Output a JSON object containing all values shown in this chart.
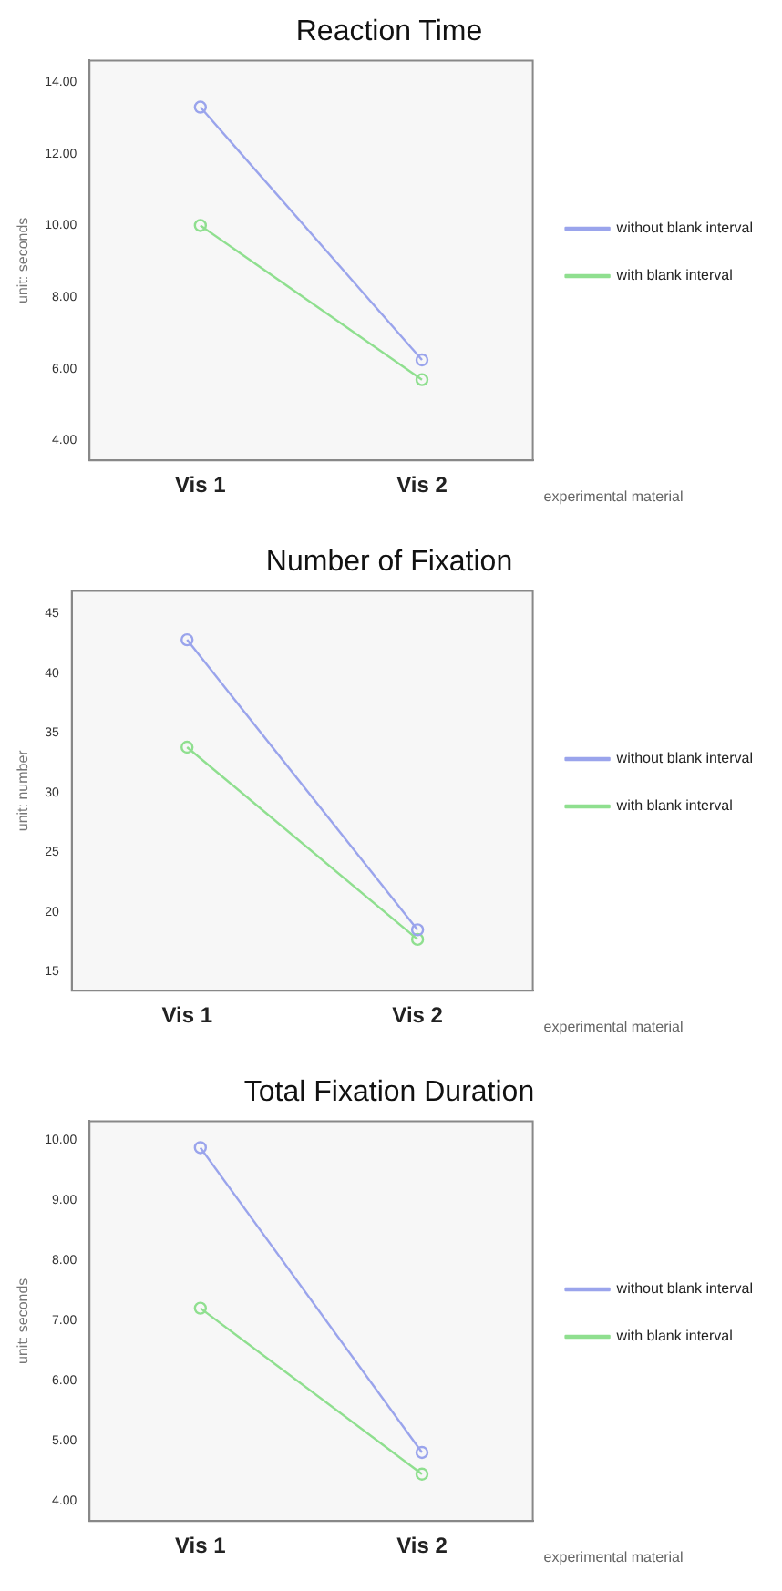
{
  "chart_data": [
    {
      "type": "line",
      "title": "Reaction Time",
      "xlabel": "experimental material",
      "ylabel": "unit: seconds",
      "categories": [
        "Vis 1",
        "Vis 2"
      ],
      "series": [
        {
          "name": "without blank interval",
          "color": "#9aa4ec",
          "values": [
            13.3,
            6.25
          ]
        },
        {
          "name": "with blank interval",
          "color": "#8fdf8f",
          "values": [
            10.0,
            5.7
          ]
        }
      ],
      "ylim": [
        3.45,
        14.6
      ],
      "yticks": [
        {
          "value": 4,
          "label": "4.00"
        },
        {
          "value": 6,
          "label": "6.00"
        },
        {
          "value": 8,
          "label": "8.00"
        },
        {
          "value": 10,
          "label": "10.00"
        },
        {
          "value": 12,
          "label": "12.00"
        },
        {
          "value": 14,
          "label": "14.00"
        }
      ],
      "marker": "circle",
      "legend": "right",
      "grid": false
    },
    {
      "type": "line",
      "title": "Number of Fixation",
      "xlabel": "experimental material",
      "ylabel": "unit: number",
      "categories": [
        "Vis 1",
        "Vis 2"
      ],
      "series": [
        {
          "name": "without blank interval",
          "color": "#9aa4ec",
          "values": [
            42.8,
            18.5
          ]
        },
        {
          "name": "with blank interval",
          "color": "#8fdf8f",
          "values": [
            33.8,
            17.7
          ]
        }
      ],
      "ylim": [
        13.4,
        46.9
      ],
      "yticks": [
        15,
        20,
        25,
        30,
        35,
        40,
        45
      ],
      "marker": "circle",
      "legend": "right",
      "grid": false
    },
    {
      "type": "line",
      "title": "Total Fixation Duration",
      "xlabel": "experimental material",
      "ylabel": "unit: seconds",
      "categories": [
        "Vis 1",
        "Vis 2"
      ],
      "series": [
        {
          "name": "without blank interval",
          "color": "#9aa4ec",
          "values": [
            9.88,
            4.81
          ]
        },
        {
          "name": "with blank interval",
          "color": "#8fdf8f",
          "values": [
            7.21,
            4.45
          ]
        }
      ],
      "ylim": [
        3.67,
        10.32
      ],
      "yticks": [
        {
          "value": 4,
          "label": "4.00"
        },
        {
          "value": 5,
          "label": "5.00"
        },
        {
          "value": 6,
          "label": "6.00"
        },
        {
          "value": 7,
          "label": "7.00"
        },
        {
          "value": 8,
          "label": "8.00"
        },
        {
          "value": 9,
          "label": "9.00"
        },
        {
          "value": 10,
          "label": "10.00"
        }
      ],
      "marker": "circle",
      "legend": "right",
      "grid": false
    }
  ]
}
